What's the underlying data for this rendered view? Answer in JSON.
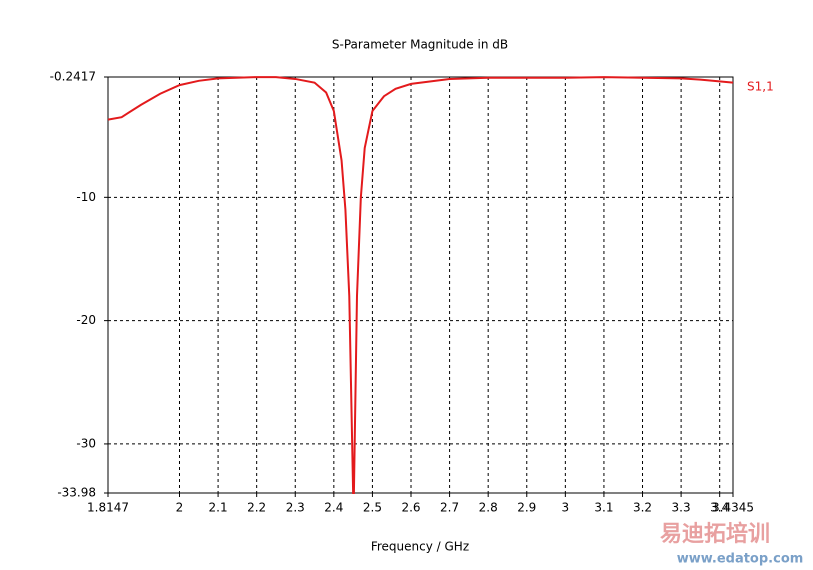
{
  "chart_data": {
    "type": "line",
    "title": "S-Parameter Magnitude in dB",
    "x_label": "Frequency / GHz",
    "x": [
      1.8147,
      1.85,
      1.9,
      1.95,
      2.0,
      2.05,
      2.1,
      2.2,
      2.25,
      2.3,
      2.35,
      2.38,
      2.4,
      2.42,
      2.43,
      2.44,
      2.45,
      2.452,
      2.46,
      2.47,
      2.48,
      2.5,
      2.53,
      2.56,
      2.6,
      2.7,
      2.8,
      2.9,
      3.0,
      3.1,
      3.2,
      3.3,
      3.35,
      3.4345
    ],
    "series": [
      {
        "name": "S1,1",
        "color": "#e31a1c",
        "values": [
          -3.7,
          -3.5,
          -2.5,
          -1.6,
          -0.9,
          -0.55,
          -0.35,
          -0.25,
          -0.25,
          -0.4,
          -0.7,
          -1.5,
          -3,
          -7,
          -11,
          -18,
          -33.98,
          -33.98,
          -18,
          -10,
          -6,
          -3,
          -1.8,
          -1.2,
          -0.8,
          -0.4,
          -0.3,
          -0.3,
          -0.3,
          -0.25,
          -0.3,
          -0.35,
          -0.45,
          -0.7
        ]
      }
    ],
    "xlim": [
      1.8147,
      3.4345
    ],
    "xticks": [
      1.8147,
      2,
      2.1,
      2.2,
      2.3,
      2.4,
      2.5,
      2.6,
      2.7,
      2.8,
      2.9,
      3,
      3.1,
      3.2,
      3.3,
      3.4,
      3.4345
    ],
    "ylim": [
      -33.98,
      -0.2417
    ],
    "yticks": [
      -0.2417,
      -10,
      -20,
      -30,
      -33.98
    ],
    "grid": true
  },
  "watermark": {
    "brand": "易迪拓培训",
    "url": "www.edatop.com"
  }
}
